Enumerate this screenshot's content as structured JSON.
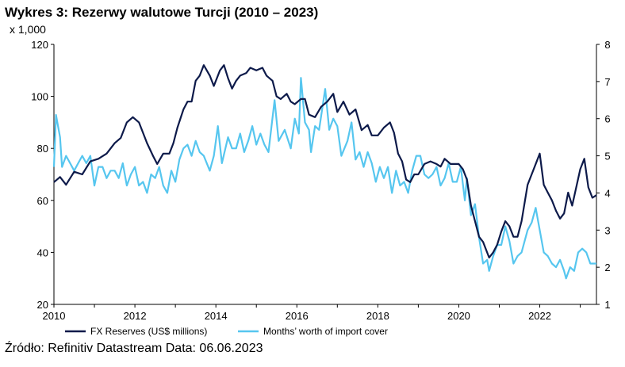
{
  "title": "Wykres 3: Rezerwy walutowe Turcji (2010 – 2023)",
  "unit_label": "x 1,000",
  "source": "Źródło: Refinitiv Datastream Data: 06.06.2023",
  "chart_data": {
    "type": "line",
    "title": "Wykres 3: Rezerwy walutowe Turcji (2010 – 2023)",
    "x_ticks": [
      "2010",
      "2012",
      "2014",
      "2016",
      "2018",
      "2020",
      "2022"
    ],
    "y_left_ticks": [
      "20",
      "40",
      "60",
      "80",
      "100",
      "120"
    ],
    "y_right_ticks": [
      "1",
      "2",
      "3",
      "4",
      "5",
      "6",
      "7",
      "8"
    ],
    "y_left_lim": [
      20,
      120
    ],
    "y_right_lim": [
      1,
      8
    ],
    "x_lim": [
      2010.0,
      2023.4
    ],
    "grid": false,
    "legend_position": "bottom",
    "series": [
      {
        "name": "FX Reserves (US$ millions)",
        "axis": "left",
        "color": "#0d1a4a",
        "points": [
          [
            2010.0,
            67
          ],
          [
            2010.15,
            69
          ],
          [
            2010.3,
            66
          ],
          [
            2010.5,
            71
          ],
          [
            2010.7,
            70
          ],
          [
            2010.9,
            75
          ],
          [
            2011.1,
            76
          ],
          [
            2011.3,
            78
          ],
          [
            2011.5,
            82
          ],
          [
            2011.65,
            84
          ],
          [
            2011.8,
            90
          ],
          [
            2011.95,
            92
          ],
          [
            2012.1,
            90
          ],
          [
            2012.2,
            86
          ],
          [
            2012.3,
            82
          ],
          [
            2012.45,
            77
          ],
          [
            2012.55,
            74
          ],
          [
            2012.7,
            78
          ],
          [
            2012.85,
            78
          ],
          [
            2012.95,
            82
          ],
          [
            2013.05,
            88
          ],
          [
            2013.2,
            95
          ],
          [
            2013.3,
            98
          ],
          [
            2013.4,
            98
          ],
          [
            2013.5,
            106
          ],
          [
            2013.6,
            108
          ],
          [
            2013.7,
            112
          ],
          [
            2013.85,
            108
          ],
          [
            2013.95,
            104
          ],
          [
            2014.1,
            110
          ],
          [
            2014.2,
            112
          ],
          [
            2014.3,
            107
          ],
          [
            2014.4,
            103
          ],
          [
            2014.5,
            106
          ],
          [
            2014.6,
            108
          ],
          [
            2014.75,
            109
          ],
          [
            2014.85,
            111
          ],
          [
            2015.0,
            110
          ],
          [
            2015.15,
            111
          ],
          [
            2015.25,
            108
          ],
          [
            2015.4,
            106
          ],
          [
            2015.5,
            100
          ],
          [
            2015.6,
            99
          ],
          [
            2015.75,
            101
          ],
          [
            2015.85,
            98
          ],
          [
            2015.95,
            97
          ],
          [
            2016.1,
            99
          ],
          [
            2016.2,
            99
          ],
          [
            2016.3,
            93
          ],
          [
            2016.45,
            92
          ],
          [
            2016.6,
            96
          ],
          [
            2016.75,
            98
          ],
          [
            2016.9,
            101
          ],
          [
            2017.0,
            94
          ],
          [
            2017.15,
            98
          ],
          [
            2017.3,
            93
          ],
          [
            2017.45,
            95
          ],
          [
            2017.6,
            87
          ],
          [
            2017.75,
            89
          ],
          [
            2017.85,
            85
          ],
          [
            2018.0,
            85
          ],
          [
            2018.15,
            88
          ],
          [
            2018.3,
            90
          ],
          [
            2018.4,
            86
          ],
          [
            2018.5,
            78
          ],
          [
            2018.6,
            75
          ],
          [
            2018.7,
            68
          ],
          [
            2018.8,
            67
          ],
          [
            2018.9,
            70
          ],
          [
            2019.0,
            70
          ],
          [
            2019.15,
            74
          ],
          [
            2019.3,
            75
          ],
          [
            2019.45,
            74
          ],
          [
            2019.55,
            73
          ],
          [
            2019.65,
            76
          ],
          [
            2019.8,
            74
          ],
          [
            2019.9,
            74
          ],
          [
            2020.0,
            74
          ],
          [
            2020.1,
            72
          ],
          [
            2020.2,
            68
          ],
          [
            2020.3,
            58
          ],
          [
            2020.4,
            52
          ],
          [
            2020.5,
            46
          ],
          [
            2020.6,
            44
          ],
          [
            2020.75,
            38
          ],
          [
            2020.85,
            40
          ],
          [
            2020.95,
            43
          ],
          [
            2021.05,
            48
          ],
          [
            2021.15,
            52
          ],
          [
            2021.25,
            50
          ],
          [
            2021.35,
            46
          ],
          [
            2021.45,
            46
          ],
          [
            2021.55,
            52
          ],
          [
            2021.7,
            66
          ],
          [
            2021.85,
            72
          ],
          [
            2022.0,
            78
          ],
          [
            2022.1,
            66
          ],
          [
            2022.2,
            63
          ],
          [
            2022.3,
            60
          ],
          [
            2022.4,
            56
          ],
          [
            2022.5,
            53
          ],
          [
            2022.6,
            55
          ],
          [
            2022.7,
            63
          ],
          [
            2022.8,
            58
          ],
          [
            2022.9,
            65
          ],
          [
            2023.0,
            72
          ],
          [
            2023.1,
            76
          ],
          [
            2023.2,
            65
          ],
          [
            2023.3,
            61
          ],
          [
            2023.4,
            62
          ]
        ]
      },
      {
        "name": "Months’ worth of import cover",
        "axis": "right",
        "color": "#56c6ef",
        "points": [
          [
            2010.0,
            4.7
          ],
          [
            2010.05,
            6.1
          ],
          [
            2010.15,
            5.5
          ],
          [
            2010.2,
            4.7
          ],
          [
            2010.3,
            5.0
          ],
          [
            2010.4,
            4.8
          ],
          [
            2010.5,
            4.6
          ],
          [
            2010.6,
            4.8
          ],
          [
            2010.7,
            5.0
          ],
          [
            2010.8,
            4.8
          ],
          [
            2010.9,
            5.0
          ],
          [
            2011.0,
            4.2
          ],
          [
            2011.1,
            4.7
          ],
          [
            2011.2,
            4.7
          ],
          [
            2011.3,
            4.4
          ],
          [
            2011.4,
            4.6
          ],
          [
            2011.5,
            4.6
          ],
          [
            2011.6,
            4.4
          ],
          [
            2011.7,
            4.8
          ],
          [
            2011.8,
            4.2
          ],
          [
            2011.9,
            4.5
          ],
          [
            2012.0,
            4.7
          ],
          [
            2012.1,
            4.2
          ],
          [
            2012.2,
            4.3
          ],
          [
            2012.3,
            4.0
          ],
          [
            2012.4,
            4.5
          ],
          [
            2012.5,
            4.4
          ],
          [
            2012.6,
            4.7
          ],
          [
            2012.7,
            4.2
          ],
          [
            2012.8,
            4.0
          ],
          [
            2012.9,
            4.6
          ],
          [
            2013.0,
            4.3
          ],
          [
            2013.1,
            4.9
          ],
          [
            2013.2,
            5.2
          ],
          [
            2013.3,
            5.3
          ],
          [
            2013.4,
            5.0
          ],
          [
            2013.5,
            5.4
          ],
          [
            2013.6,
            5.1
          ],
          [
            2013.7,
            5.0
          ],
          [
            2013.85,
            4.6
          ],
          [
            2013.95,
            5.0
          ],
          [
            2014.05,
            5.8
          ],
          [
            2014.15,
            4.8
          ],
          [
            2014.3,
            5.5
          ],
          [
            2014.4,
            5.2
          ],
          [
            2014.5,
            5.2
          ],
          [
            2014.6,
            5.6
          ],
          [
            2014.7,
            5.1
          ],
          [
            2014.8,
            5.4
          ],
          [
            2014.9,
            5.8
          ],
          [
            2015.0,
            5.3
          ],
          [
            2015.1,
            5.6
          ],
          [
            2015.2,
            5.3
          ],
          [
            2015.3,
            5.1
          ],
          [
            2015.45,
            6.5
          ],
          [
            2015.55,
            5.4
          ],
          [
            2015.7,
            5.7
          ],
          [
            2015.85,
            5.2
          ],
          [
            2015.95,
            6.0
          ],
          [
            2016.05,
            5.6
          ],
          [
            2016.1,
            7.1
          ],
          [
            2016.2,
            5.9
          ],
          [
            2016.3,
            5.7
          ],
          [
            2016.35,
            5.1
          ],
          [
            2016.45,
            5.8
          ],
          [
            2016.55,
            5.7
          ],
          [
            2016.7,
            6.8
          ],
          [
            2016.8,
            5.7
          ],
          [
            2016.9,
            6.0
          ],
          [
            2017.0,
            5.8
          ],
          [
            2017.1,
            5.0
          ],
          [
            2017.25,
            5.4
          ],
          [
            2017.35,
            5.9
          ],
          [
            2017.45,
            4.9
          ],
          [
            2017.55,
            5.1
          ],
          [
            2017.65,
            4.7
          ],
          [
            2017.75,
            5.1
          ],
          [
            2017.85,
            4.8
          ],
          [
            2017.95,
            4.3
          ],
          [
            2018.05,
            4.7
          ],
          [
            2018.15,
            4.4
          ],
          [
            2018.25,
            4.7
          ],
          [
            2018.35,
            4.0
          ],
          [
            2018.45,
            4.6
          ],
          [
            2018.55,
            4.2
          ],
          [
            2018.65,
            4.3
          ],
          [
            2018.75,
            4.0
          ],
          [
            2018.85,
            4.6
          ],
          [
            2018.95,
            5.0
          ],
          [
            2019.05,
            5.0
          ],
          [
            2019.15,
            4.5
          ],
          [
            2019.25,
            4.4
          ],
          [
            2019.35,
            4.5
          ],
          [
            2019.45,
            4.7
          ],
          [
            2019.55,
            4.2
          ],
          [
            2019.65,
            4.4
          ],
          [
            2019.75,
            4.8
          ],
          [
            2019.85,
            4.3
          ],
          [
            2019.95,
            4.3
          ],
          [
            2020.05,
            4.7
          ],
          [
            2020.15,
            3.8
          ],
          [
            2020.2,
            4.4
          ],
          [
            2020.3,
            3.4
          ],
          [
            2020.4,
            3.7
          ],
          [
            2020.5,
            2.8
          ],
          [
            2020.6,
            2.1
          ],
          [
            2020.7,
            2.2
          ],
          [
            2020.75,
            1.9
          ],
          [
            2020.85,
            2.3
          ],
          [
            2020.95,
            2.6
          ],
          [
            2021.05,
            2.6
          ],
          [
            2021.15,
            3.1
          ],
          [
            2021.25,
            2.7
          ],
          [
            2021.35,
            2.1
          ],
          [
            2021.45,
            2.3
          ],
          [
            2021.55,
            2.4
          ],
          [
            2021.7,
            3.0
          ],
          [
            2021.8,
            3.2
          ],
          [
            2021.9,
            3.6
          ],
          [
            2022.0,
            3.0
          ],
          [
            2022.1,
            2.4
          ],
          [
            2022.2,
            2.3
          ],
          [
            2022.3,
            2.1
          ],
          [
            2022.4,
            2.0
          ],
          [
            2022.5,
            2.2
          ],
          [
            2022.6,
            1.9
          ],
          [
            2022.65,
            1.7
          ],
          [
            2022.75,
            2.0
          ],
          [
            2022.85,
            1.9
          ],
          [
            2022.95,
            2.4
          ],
          [
            2023.05,
            2.5
          ],
          [
            2023.15,
            2.4
          ],
          [
            2023.25,
            2.1
          ],
          [
            2023.4,
            2.1
          ]
        ]
      }
    ]
  }
}
